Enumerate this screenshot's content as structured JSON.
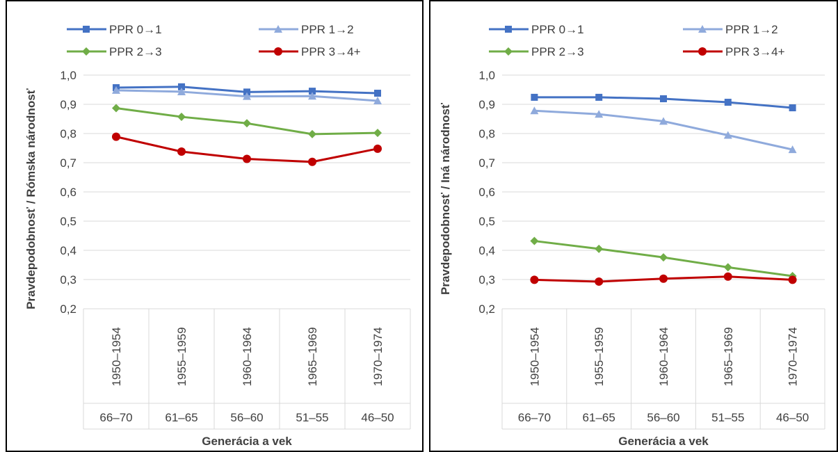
{
  "chart_data": [
    {
      "type": "line",
      "title": "",
      "xlabel": "Generácia a vek",
      "ylabel": "Pravdepodobnosť / Rómska národnosť",
      "ylim": [
        0.2,
        1.0
      ],
      "yticks": [
        "1,0",
        "0,9",
        "0,8",
        "0,7",
        "0,6",
        "0,5",
        "0,4",
        "0,3",
        "0,2"
      ],
      "categories": [
        "1950–1954",
        "1955–1959",
        "1960–1964",
        "1965–1969",
        "1970–1974"
      ],
      "categories_age": [
        "66–70",
        "61–65",
        "56–60",
        "51–55",
        "46–50"
      ],
      "legend_position": "top",
      "grid": true,
      "series": [
        {
          "name": "PPR 0→1",
          "color": "#4472C4",
          "marker": "square",
          "values": [
            0.957,
            0.96,
            0.942,
            0.945,
            0.938
          ]
        },
        {
          "name": "PPR 1→2",
          "color": "#8FAADC",
          "marker": "triangle",
          "values": [
            0.948,
            0.943,
            0.927,
            0.928,
            0.912
          ]
        },
        {
          "name": "PPR 2→3",
          "color": "#70AD47",
          "marker": "diamond",
          "values": [
            0.887,
            0.857,
            0.835,
            0.798,
            0.802
          ]
        },
        {
          "name": "PPR 3→4+",
          "color": "#C00000",
          "marker": "circle",
          "values": [
            0.789,
            0.738,
            0.713,
            0.703,
            0.748
          ]
        }
      ]
    },
    {
      "type": "line",
      "title": "",
      "xlabel": "Generácia a vek",
      "ylabel": "Pravdepodobnosť / Iná národnosť",
      "ylim": [
        0.2,
        1.0
      ],
      "yticks": [
        "1,0",
        "0,9",
        "0,8",
        "0,7",
        "0,6",
        "0,5",
        "0,4",
        "0,3",
        "0,2"
      ],
      "categories": [
        "1950–1954",
        "1955–1959",
        "1960–1964",
        "1965–1969",
        "1970–1974"
      ],
      "categories_age": [
        "66–70",
        "61–65",
        "56–60",
        "51–55",
        "46–50"
      ],
      "legend_position": "top",
      "grid": true,
      "series": [
        {
          "name": "PPR 0→1",
          "color": "#4472C4",
          "marker": "square",
          "values": [
            0.924,
            0.924,
            0.919,
            0.907,
            0.888
          ]
        },
        {
          "name": "PPR 1→2",
          "color": "#8FAADC",
          "marker": "triangle",
          "values": [
            0.878,
            0.866,
            0.842,
            0.794,
            0.745
          ]
        },
        {
          "name": "PPR 2→3",
          "color": "#70AD47",
          "marker": "diamond",
          "values": [
            0.432,
            0.405,
            0.376,
            0.342,
            0.312
          ]
        },
        {
          "name": "PPR 3→4+",
          "color": "#C00000",
          "marker": "circle",
          "values": [
            0.299,
            0.293,
            0.303,
            0.31,
            0.299
          ]
        }
      ]
    }
  ]
}
